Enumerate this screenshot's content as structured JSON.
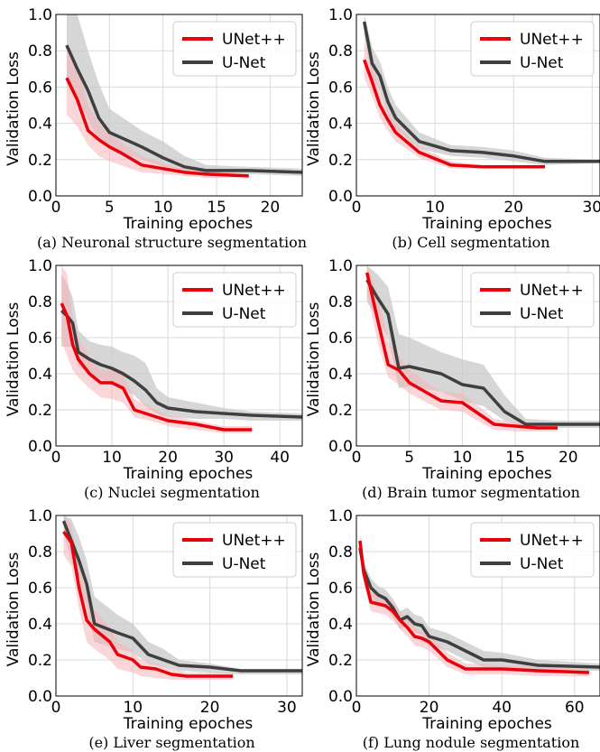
{
  "figure": {
    "colors": {
      "unetpp": "#e8000b",
      "unet": "#3f3f3f",
      "unetpp_band": "#f7b4b8",
      "unet_band": "#c8c8c8",
      "grid": "#d9d9d9"
    },
    "legend_labels": [
      "UNet++",
      "U-Net"
    ],
    "xlabel": "Training epoches",
    "ylabel": "Validation Loss"
  },
  "chart_data": [
    {
      "type": "line",
      "caption": "(a) Neuronal structure segmentation",
      "xlabel": "Training epoches",
      "ylabel": "Validation Loss",
      "xlim": [
        0,
        23
      ],
      "ylim": [
        0,
        1.0
      ],
      "xticks": [
        0,
        5,
        10,
        15,
        20
      ],
      "yticks": [
        0.0,
        0.2,
        0.4,
        0.6,
        0.8,
        1.0
      ],
      "grid": true,
      "legend": "top-right",
      "series": [
        {
          "name": "UNet++",
          "color": "#e8000b",
          "x": [
            1,
            2,
            3,
            4,
            5,
            6,
            8,
            10,
            12,
            14,
            18
          ],
          "y": [
            0.65,
            0.53,
            0.36,
            0.31,
            0.27,
            0.24,
            0.17,
            0.15,
            0.13,
            0.12,
            0.11
          ],
          "upper": [
            0.8,
            0.72,
            0.5,
            0.4,
            0.35,
            0.3,
            0.22,
            0.18,
            0.15,
            0.14,
            0.12
          ],
          "lower": [
            0.45,
            0.38,
            0.28,
            0.22,
            0.19,
            0.17,
            0.13,
            0.12,
            0.11,
            0.1,
            0.1
          ]
        },
        {
          "name": "U-Net",
          "color": "#3f3f3f",
          "x": [
            1,
            2,
            3,
            4,
            5,
            8,
            10,
            12,
            14,
            18,
            23
          ],
          "y": [
            0.83,
            0.7,
            0.58,
            0.43,
            0.35,
            0.27,
            0.21,
            0.16,
            0.14,
            0.14,
            0.13
          ],
          "upper": [
            1.0,
            1.0,
            0.8,
            0.62,
            0.48,
            0.36,
            0.3,
            0.22,
            0.17,
            0.16,
            0.15
          ],
          "lower": [
            0.65,
            0.52,
            0.42,
            0.3,
            0.26,
            0.2,
            0.16,
            0.13,
            0.12,
            0.12,
            0.11
          ]
        }
      ]
    },
    {
      "type": "line",
      "caption": "(b) Cell segmentation",
      "xlabel": "Training epoches",
      "ylabel": "Validation Loss",
      "xlim": [
        0,
        31
      ],
      "ylim": [
        0,
        1.0
      ],
      "xticks": [
        0,
        10,
        20,
        30
      ],
      "yticks": [
        0.0,
        0.2,
        0.4,
        0.6,
        0.8,
        1.0
      ],
      "grid": true,
      "legend": "top-right",
      "series": [
        {
          "name": "UNet++",
          "color": "#e8000b",
          "x": [
            1,
            2,
            3,
            4,
            5,
            8,
            12,
            16,
            20,
            24
          ],
          "y": [
            0.75,
            0.63,
            0.5,
            0.42,
            0.35,
            0.24,
            0.17,
            0.16,
            0.16,
            0.16
          ],
          "upper": [
            0.85,
            0.72,
            0.58,
            0.48,
            0.4,
            0.27,
            0.19,
            0.17,
            0.17,
            0.17
          ],
          "lower": [
            0.65,
            0.55,
            0.43,
            0.36,
            0.3,
            0.21,
            0.15,
            0.15,
            0.15,
            0.15
          ]
        },
        {
          "name": "U-Net",
          "color": "#3f3f3f",
          "x": [
            1,
            2,
            3,
            4,
            5,
            8,
            12,
            16,
            20,
            24,
            31
          ],
          "y": [
            0.96,
            0.73,
            0.66,
            0.52,
            0.43,
            0.3,
            0.25,
            0.24,
            0.22,
            0.19,
            0.19
          ],
          "upper": [
            1.0,
            0.82,
            0.74,
            0.6,
            0.5,
            0.35,
            0.28,
            0.27,
            0.25,
            0.21,
            0.2
          ],
          "lower": [
            0.88,
            0.64,
            0.58,
            0.45,
            0.37,
            0.26,
            0.22,
            0.21,
            0.19,
            0.17,
            0.18
          ]
        }
      ]
    },
    {
      "type": "line",
      "caption": "(c) Nuclei segmentation",
      "xlabel": "Training epoches",
      "ylabel": "Validation Loss",
      "xlim": [
        0,
        44
      ],
      "ylim": [
        0,
        1.0
      ],
      "xticks": [
        0,
        10,
        20,
        30,
        40
      ],
      "yticks": [
        0.0,
        0.2,
        0.4,
        0.6,
        0.8,
        1.0
      ],
      "grid": true,
      "legend": "top-right",
      "series": [
        {
          "name": "UNet++",
          "color": "#e8000b",
          "x": [
            1,
            2,
            3,
            4,
            6,
            8,
            10,
            12,
            14,
            18,
            20,
            25,
            30,
            35
          ],
          "y": [
            0.79,
            0.72,
            0.56,
            0.48,
            0.4,
            0.35,
            0.35,
            0.32,
            0.2,
            0.16,
            0.14,
            0.12,
            0.09,
            0.09
          ],
          "upper": [
            1.0,
            0.95,
            0.72,
            0.6,
            0.5,
            0.42,
            0.42,
            0.4,
            0.26,
            0.2,
            0.17,
            0.14,
            0.11,
            0.11
          ],
          "lower": [
            0.58,
            0.5,
            0.42,
            0.38,
            0.32,
            0.27,
            0.26,
            0.24,
            0.16,
            0.13,
            0.11,
            0.09,
            0.07,
            0.07
          ]
        },
        {
          "name": "U-Net",
          "color": "#3f3f3f",
          "x": [
            1,
            2,
            3,
            4,
            6,
            8,
            10,
            12,
            14,
            16,
            18,
            20,
            25,
            30,
            35,
            44
          ],
          "y": [
            0.75,
            0.72,
            0.68,
            0.52,
            0.48,
            0.45,
            0.43,
            0.4,
            0.36,
            0.31,
            0.24,
            0.21,
            0.19,
            0.18,
            0.17,
            0.16
          ],
          "upper": [
            0.95,
            0.9,
            0.82,
            0.64,
            0.58,
            0.56,
            0.55,
            0.52,
            0.5,
            0.46,
            0.32,
            0.27,
            0.24,
            0.21,
            0.19,
            0.18
          ],
          "lower": [
            0.55,
            0.55,
            0.55,
            0.44,
            0.4,
            0.37,
            0.34,
            0.31,
            0.28,
            0.22,
            0.18,
            0.16,
            0.15,
            0.15,
            0.14,
            0.14
          ]
        }
      ]
    },
    {
      "type": "line",
      "caption": "(d) Brain tumor segmentation",
      "xlabel": "Training epoches",
      "ylabel": "Validation Loss",
      "xlim": [
        0,
        23
      ],
      "ylim": [
        0,
        1.0
      ],
      "xticks": [
        0,
        5,
        10,
        15,
        20
      ],
      "yticks": [
        0.0,
        0.2,
        0.4,
        0.6,
        0.8,
        1.0
      ],
      "grid": true,
      "legend": "top-right",
      "series": [
        {
          "name": "UNet++",
          "color": "#e8000b",
          "x": [
            1,
            2,
            3,
            4,
            5,
            8,
            10,
            12,
            13,
            15,
            17,
            19
          ],
          "y": [
            0.96,
            0.7,
            0.45,
            0.42,
            0.35,
            0.25,
            0.24,
            0.16,
            0.12,
            0.11,
            0.1,
            0.1
          ],
          "upper": [
            1.0,
            0.85,
            0.58,
            0.5,
            0.42,
            0.3,
            0.29,
            0.2,
            0.15,
            0.13,
            0.12,
            0.12
          ],
          "lower": [
            0.85,
            0.58,
            0.38,
            0.34,
            0.29,
            0.2,
            0.19,
            0.12,
            0.09,
            0.08,
            0.08,
            0.08
          ]
        },
        {
          "name": "U-Net",
          "color": "#3f3f3f",
          "x": [
            1,
            2,
            3,
            4,
            5,
            8,
            10,
            12,
            14,
            16,
            19,
            23
          ],
          "y": [
            0.92,
            0.82,
            0.73,
            0.43,
            0.44,
            0.4,
            0.34,
            0.32,
            0.19,
            0.12,
            0.12,
            0.12
          ],
          "upper": [
            1.0,
            0.95,
            0.88,
            0.62,
            0.6,
            0.52,
            0.48,
            0.45,
            0.28,
            0.15,
            0.14,
            0.14
          ],
          "lower": [
            0.8,
            0.7,
            0.6,
            0.32,
            0.33,
            0.3,
            0.25,
            0.22,
            0.14,
            0.1,
            0.1,
            0.1
          ]
        }
      ]
    },
    {
      "type": "line",
      "caption": "(e) Liver segmentation",
      "xlabel": "Training epoches",
      "ylabel": "Validation Loss",
      "xlim": [
        0,
        32
      ],
      "ylim": [
        0,
        1.0
      ],
      "xticks": [
        0,
        10,
        20,
        30
      ],
      "yticks": [
        0.0,
        0.2,
        0.4,
        0.6,
        0.8,
        1.0
      ],
      "grid": true,
      "legend": "top-right",
      "series": [
        {
          "name": "UNet++",
          "color": "#e8000b",
          "x": [
            1,
            2,
            3,
            4,
            5,
            7,
            8,
            10,
            11,
            13,
            15,
            17,
            20,
            23
          ],
          "y": [
            0.91,
            0.85,
            0.6,
            0.42,
            0.37,
            0.3,
            0.23,
            0.2,
            0.16,
            0.15,
            0.12,
            0.11,
            0.11,
            0.11
          ],
          "upper": [
            1.0,
            0.95,
            0.74,
            0.55,
            0.48,
            0.38,
            0.3,
            0.25,
            0.2,
            0.18,
            0.15,
            0.13,
            0.13,
            0.13
          ],
          "lower": [
            0.78,
            0.72,
            0.48,
            0.3,
            0.26,
            0.2,
            0.15,
            0.13,
            0.11,
            0.1,
            0.09,
            0.09,
            0.09,
            0.09
          ]
        },
        {
          "name": "U-Net",
          "color": "#3f3f3f",
          "x": [
            1,
            2,
            3,
            4,
            5,
            8,
            10,
            12,
            14,
            16,
            20,
            24,
            32
          ],
          "y": [
            0.97,
            0.86,
            0.75,
            0.62,
            0.4,
            0.35,
            0.32,
            0.23,
            0.2,
            0.17,
            0.16,
            0.14,
            0.14
          ],
          "upper": [
            1.0,
            0.98,
            0.88,
            0.75,
            0.55,
            0.45,
            0.4,
            0.3,
            0.26,
            0.2,
            0.18,
            0.15,
            0.15
          ],
          "lower": [
            0.9,
            0.75,
            0.62,
            0.5,
            0.3,
            0.26,
            0.24,
            0.18,
            0.16,
            0.14,
            0.13,
            0.12,
            0.12
          ]
        }
      ]
    },
    {
      "type": "line",
      "caption": "(f) Lung nodule segmentation",
      "xlabel": "Training epoches",
      "ylabel": "Validation Loss",
      "xlim": [
        0,
        67
      ],
      "ylim": [
        0,
        1.0
      ],
      "xticks": [
        0,
        20,
        40,
        60
      ],
      "yticks": [
        0.0,
        0.2,
        0.4,
        0.6,
        0.8,
        1.0
      ],
      "grid": true,
      "legend": "top-right",
      "series": [
        {
          "name": "UNet++",
          "color": "#e8000b",
          "x": [
            1,
            2,
            4,
            6,
            8,
            10,
            12,
            14,
            16,
            18,
            20,
            25,
            30,
            40,
            50,
            64
          ],
          "y": [
            0.86,
            0.68,
            0.52,
            0.51,
            0.5,
            0.47,
            0.42,
            0.38,
            0.33,
            0.32,
            0.3,
            0.2,
            0.15,
            0.15,
            0.14,
            0.13
          ],
          "upper": [
            0.9,
            0.74,
            0.58,
            0.56,
            0.55,
            0.52,
            0.47,
            0.43,
            0.38,
            0.36,
            0.34,
            0.24,
            0.18,
            0.17,
            0.16,
            0.15
          ],
          "lower": [
            0.8,
            0.62,
            0.47,
            0.46,
            0.45,
            0.42,
            0.37,
            0.33,
            0.28,
            0.27,
            0.25,
            0.16,
            0.12,
            0.12,
            0.11,
            0.11
          ]
        },
        {
          "name": "U-Net",
          "color": "#3f3f3f",
          "x": [
            1,
            2,
            4,
            6,
            8,
            10,
            12,
            14,
            16,
            18,
            20,
            25,
            30,
            35,
            40,
            50,
            67
          ],
          "y": [
            0.82,
            0.7,
            0.6,
            0.56,
            0.54,
            0.49,
            0.42,
            0.44,
            0.4,
            0.39,
            0.33,
            0.3,
            0.25,
            0.2,
            0.2,
            0.17,
            0.16
          ],
          "upper": [
            0.86,
            0.75,
            0.65,
            0.61,
            0.59,
            0.54,
            0.47,
            0.49,
            0.45,
            0.44,
            0.38,
            0.35,
            0.3,
            0.25,
            0.24,
            0.2,
            0.18
          ],
          "lower": [
            0.78,
            0.65,
            0.55,
            0.51,
            0.49,
            0.44,
            0.37,
            0.39,
            0.35,
            0.34,
            0.28,
            0.25,
            0.2,
            0.16,
            0.16,
            0.14,
            0.14
          ]
        }
      ]
    }
  ]
}
